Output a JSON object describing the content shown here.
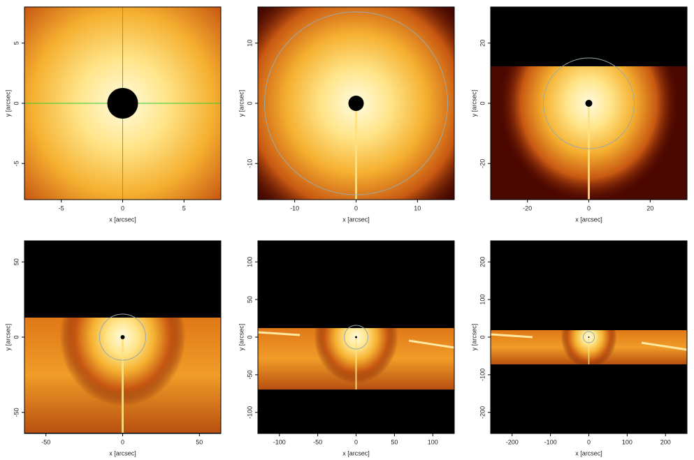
{
  "chart_data": [
    {
      "type": "image",
      "xlabel": "x [arcsec]",
      "ylabel": "y [arcsec]",
      "xlim": [
        -8,
        8
      ],
      "ylim": [
        -8,
        8
      ],
      "xticks": [
        -5,
        0,
        5
      ],
      "yticks": [
        -5,
        0,
        5
      ]
    },
    {
      "type": "image",
      "xlabel": "x [arcsec]",
      "ylabel": "y [arcsec]",
      "xlim": [
        -16,
        16
      ],
      "ylim": [
        -16,
        16
      ],
      "xticks": [
        -10,
        0,
        10
      ],
      "yticks": [
        -10,
        0,
        10
      ]
    },
    {
      "type": "image",
      "xlabel": "x [arcsec]",
      "ylabel": "y [arcsec]",
      "xlim": [
        -32,
        32
      ],
      "ylim": [
        -32,
        32
      ],
      "xticks": [
        -20,
        0,
        20
      ],
      "yticks": [
        -20,
        0,
        20
      ]
    },
    {
      "type": "image",
      "xlabel": "x [arcsec]",
      "ylabel": "y [arcsec]",
      "xlim": [
        -64,
        64
      ],
      "ylim": [
        -64,
        64
      ],
      "xticks": [
        -50,
        0,
        50
      ],
      "yticks": [
        -50,
        0,
        50
      ]
    },
    {
      "type": "image",
      "xlabel": "x [arcsec]",
      "ylabel": "y [arcsec]",
      "xlim": [
        -128,
        128
      ],
      "ylim": [
        -128,
        128
      ],
      "xticks": [
        -100,
        -50,
        0,
        50,
        100
      ],
      "yticks": [
        -100,
        -50,
        0,
        50,
        100
      ]
    },
    {
      "type": "image",
      "xlabel": "x [arcsec]",
      "ylabel": "y [arcsec]",
      "xlim": [
        -256,
        256
      ],
      "ylim": [
        -256,
        256
      ],
      "xticks": [
        -200,
        -100,
        0,
        100,
        200
      ],
      "yticks": [
        -200,
        -100,
        0,
        100,
        200
      ]
    }
  ]
}
